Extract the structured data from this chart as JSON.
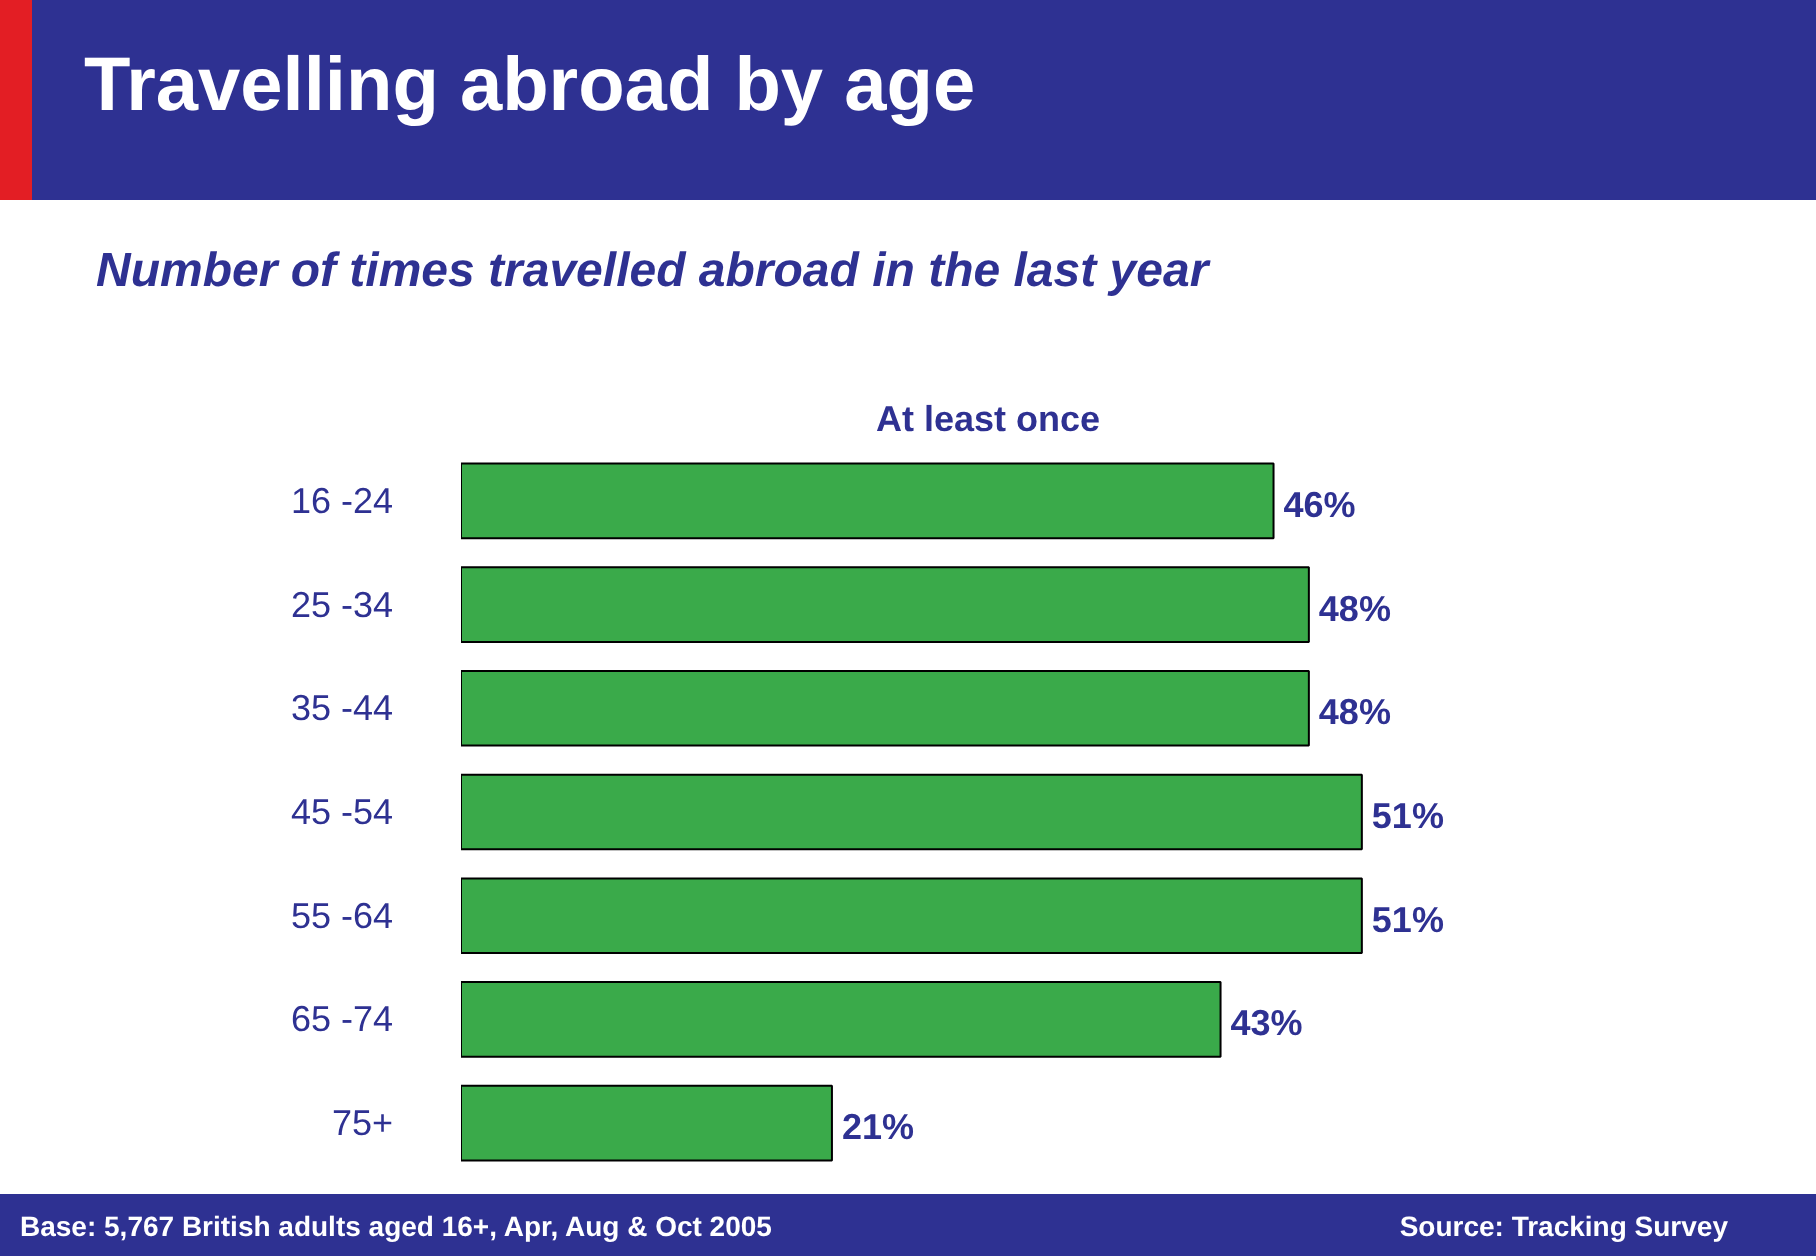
{
  "chart_data": {
    "type": "bar",
    "orientation": "horizontal",
    "title": "Travelling abroad by age",
    "subtitle": "Number of times travelled abroad in the last year",
    "xlabel": "At least once",
    "categories": [
      "16 -24",
      "25 -34",
      "35 -44",
      "45 -54",
      "55 -64",
      "65 -74",
      "75+"
    ],
    "values": [
      46,
      48,
      48,
      51,
      51,
      43,
      21
    ],
    "value_labels": [
      "46%",
      "48%",
      "48%",
      "51%",
      "51%",
      "43%",
      "21%"
    ],
    "color": "#3aaa4a",
    "grid": false,
    "tick_labels": "y",
    "annotations": [
      "Base: 5,767 British adults aged 16+, Apr, Aug & Oct 2005",
      "Source: Tracking Survey"
    ]
  }
}
